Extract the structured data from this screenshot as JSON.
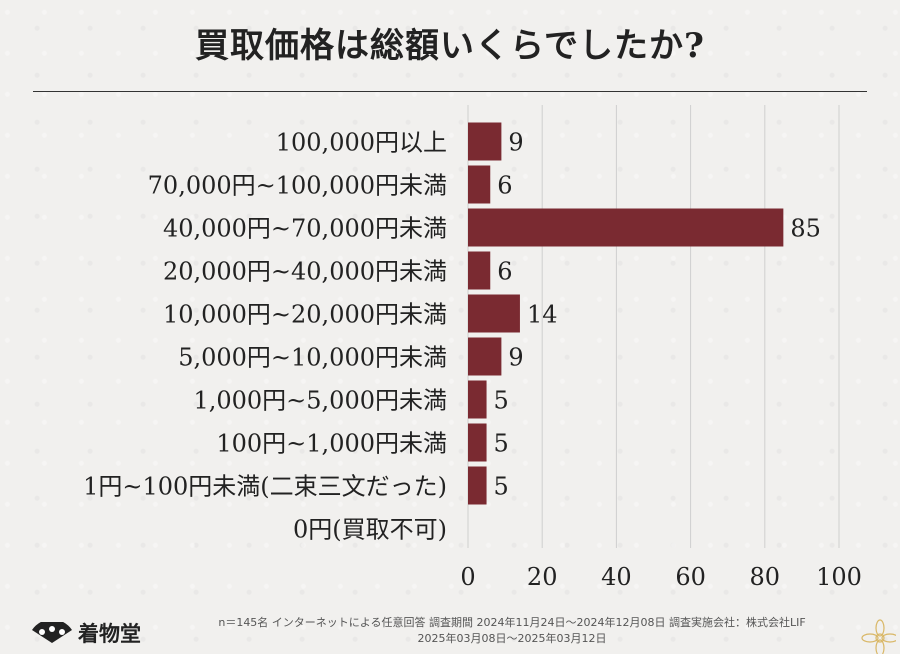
{
  "title": "買取価格は総額いくらでしたか?",
  "colors": {
    "bar": "#7a2a31",
    "grid": "#cfcfcf",
    "text": "#222222"
  },
  "chart_data": {
    "type": "bar",
    "orientation": "horizontal",
    "categories": [
      "100,000円以上",
      "70,000円~100,000円未満",
      "40,000円~70,000円未満",
      "20,000円~40,000円未満",
      "10,000円~20,000円未満",
      "5,000円~10,000円未満",
      "1,000円~5,000円未満",
      "100円~1,000円未満",
      "1円~100円未満(二束三文だった)",
      "0円(買取不可)"
    ],
    "values": [
      9,
      6,
      85,
      6,
      14,
      9,
      5,
      5,
      5,
      0
    ],
    "value_labels": [
      "9",
      "6",
      "85",
      "6",
      "14",
      "9",
      "5",
      "5",
      "5",
      ""
    ],
    "xlim": [
      0,
      100
    ],
    "xticks": [
      "0",
      "20",
      "40",
      "60",
      "80",
      "100"
    ],
    "grid": true
  },
  "footer": {
    "logo_text": "着物堂",
    "note_line1": "n＝145名 インターネットによる任意回答 調査期間 2024年11月24日～2024年12月08日 調査実施会社：株式会社LIF",
    "note_line2": "2025年03月08日～2025年03月12日"
  }
}
